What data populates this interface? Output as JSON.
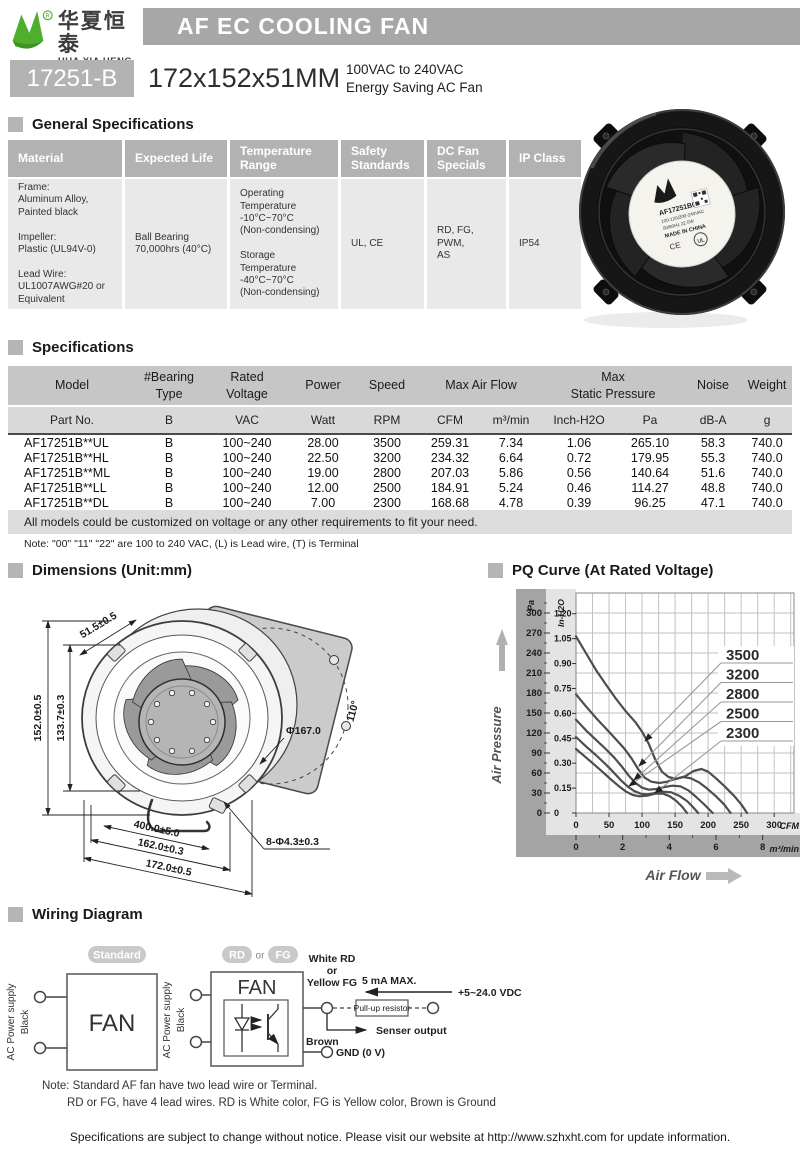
{
  "header": {
    "logo_cn": "华夏恒泰",
    "logo_en": "HUA XIA HENG TAI",
    "registered_mark": "®",
    "banner": "AF EC COOLING FAN",
    "model": "17251-B",
    "size": "172x152x51MM",
    "subtitle1": "100VAC to 240VAC",
    "subtitle2": "Energy Saving AC Fan"
  },
  "sections": {
    "general": "General Specifications",
    "specs": "Specifications",
    "dimensions": "Dimensions (Unit:mm)",
    "pq": "PQ Curve (At Rated Voltage)",
    "wiring": "Wiring Diagram"
  },
  "general_table": {
    "headers": [
      "Material",
      "Expected Life",
      "Temperature Range",
      "Safety Standards",
      "DC Fan Specials",
      "IP Class"
    ],
    "material": "Frame:\nAluminum Alloy,\nPainted black\n\nImpeller:\nPlastic (UL94V-0)\n\nLead Wire:\nUL1007AWG#20 or\nEquivalent",
    "expected_life": "Ball Bearing\n70,000hrs (40°C)",
    "temperature": "Operating\nTemperature\n-10°C~70°C\n(Non-condensing)\n\nStorage\nTemperature\n-40°C~70°C\n(Non-condensing)",
    "safety": "UL, CE",
    "dc_specials": "RD, FG,\nPWM,\nAS",
    "ip": "IP54"
  },
  "spec_table": {
    "h_model": "Model",
    "h_bearing": "#Bearing\nType",
    "h_voltage": "Rated\nVoltage",
    "h_power": "Power",
    "h_speed": "Speed",
    "h_airflow": "Max  Air  Flow",
    "h_pressure": "Max\nStatic  Pressure",
    "h_noise": "Noise",
    "h_weight": "Weight",
    "units": [
      "Part No.",
      "B",
      "VAC",
      "Watt",
      "RPM",
      "CFM",
      "m³/min",
      "Inch-H2O",
      "Pa",
      "dB-A",
      "g"
    ],
    "rows": [
      [
        "AF17251B**UL",
        "B",
        "100~240",
        "28.00",
        "3500",
        "259.31",
        "7.34",
        "1.06",
        "265.10",
        "58.3",
        "740.0"
      ],
      [
        "AF17251B**HL",
        "B",
        "100~240",
        "22.50",
        "3200",
        "234.32",
        "6.64",
        "0.72",
        "179.95",
        "55.3",
        "740.0"
      ],
      [
        "AF17251B**ML",
        "B",
        "100~240",
        "19.00",
        "2800",
        "207.03",
        "5.86",
        "0.56",
        "140.64",
        "51.6",
        "740.0"
      ],
      [
        "AF17251B**LL",
        "B",
        "100~240",
        "12.00",
        "2500",
        "184.91",
        "5.24",
        "0.46",
        "114.27",
        "48.8",
        "740.0"
      ],
      [
        "AF17251B**DL",
        "B",
        "100~240",
        "7.00",
        "2300",
        "168.68",
        "4.78",
        "0.39",
        "96.25",
        "47.1",
        "740.0"
      ]
    ],
    "note1": "All models could be customized on voltage or any other requirements to fit your need.",
    "note2": "Note: \"00\" \"11\"  \"22\" are 100 to 240 VAC, (L) is Lead wire, (T) is Terminal"
  },
  "fan_photo": {
    "label_model": "AF17251B00HL",
    "label_voltage": "100-120/200-240VAC",
    "label_power": "50/60Hz  22.5W",
    "label_origin": "MADE IN CHINA",
    "ce_mark": "CE",
    "ul_mark": "UL"
  },
  "dimensions": {
    "depth": "51.5±0.5",
    "height": "152.0±0.5",
    "inner_height": "133.7±0.3",
    "lead": "400.0±5.0",
    "inner_width": "162.0±0.3",
    "width": "172.0±0.5",
    "holes": "8-Φ4.3±0.3",
    "circle": "Φ167.0",
    "angle": "110°"
  },
  "chart_data": {
    "type": "line",
    "title": "PQ Curve (At Rated Voltage)",
    "xlabel": "Air Flow",
    "ylabel": "Air Pressure",
    "x_axis": {
      "cfm_ticks": [
        0,
        50,
        100,
        150,
        200,
        250,
        300
      ],
      "cfm_unit": "CFM",
      "m3_ticks": [
        0,
        2,
        4,
        6,
        8
      ],
      "m3_unit": "m³/min",
      "xlim_cfm": [
        0,
        330
      ]
    },
    "y_axis": {
      "pa_ticks": [
        0,
        30,
        60,
        90,
        120,
        150,
        180,
        210,
        240,
        270,
        300
      ],
      "pa_unit": "Pa",
      "inh2o_ticks": [
        "0",
        "0.15",
        "0.30",
        "0.45",
        "0.60",
        "0.75",
        "0.90",
        "1.05",
        "1.20"
      ],
      "inh2o_unit": "In-H2O",
      "ylim_pa": [
        0,
        330
      ]
    },
    "grid": true,
    "legend_position": "top-right",
    "series": [
      {
        "name": "3500",
        "points": [
          [
            0,
            265
          ],
          [
            15,
            240
          ],
          [
            30,
            215
          ],
          [
            45,
            193
          ],
          [
            60,
            172
          ],
          [
            75,
            153
          ],
          [
            90,
            136
          ],
          [
            100,
            122
          ],
          [
            110,
            104
          ],
          [
            120,
            80
          ],
          [
            130,
            62
          ],
          [
            140,
            54
          ],
          [
            152,
            51
          ],
          [
            165,
            55
          ],
          [
            178,
            63
          ],
          [
            190,
            66
          ],
          [
            200,
            62
          ],
          [
            212,
            52
          ],
          [
            225,
            40
          ],
          [
            240,
            25
          ],
          [
            250,
            13
          ],
          [
            259,
            0
          ]
        ]
      },
      {
        "name": "3200",
        "points": [
          [
            0,
            178
          ],
          [
            15,
            160
          ],
          [
            30,
            143
          ],
          [
            45,
            127
          ],
          [
            60,
            111
          ],
          [
            72,
            98
          ],
          [
            84,
            82
          ],
          [
            94,
            66
          ],
          [
            104,
            53
          ],
          [
            114,
            47
          ],
          [
            126,
            45
          ],
          [
            138,
            47
          ],
          [
            150,
            51
          ],
          [
            162,
            54
          ],
          [
            174,
            52
          ],
          [
            186,
            46
          ],
          [
            198,
            37
          ],
          [
            212,
            25
          ],
          [
            224,
            13
          ],
          [
            234,
            0
          ]
        ]
      },
      {
        "name": "2800",
        "points": [
          [
            0,
            140
          ],
          [
            15,
            124
          ],
          [
            30,
            110
          ],
          [
            45,
            96
          ],
          [
            58,
            83
          ],
          [
            70,
            69
          ],
          [
            80,
            56
          ],
          [
            90,
            45
          ],
          [
            100,
            38
          ],
          [
            110,
            35
          ],
          [
            122,
            36
          ],
          [
            134,
            39
          ],
          [
            146,
            41
          ],
          [
            158,
            40
          ],
          [
            170,
            34
          ],
          [
            182,
            24
          ],
          [
            195,
            12
          ],
          [
            207,
            0
          ]
        ]
      },
      {
        "name": "2500",
        "points": [
          [
            0,
            114
          ],
          [
            15,
            100
          ],
          [
            30,
            87
          ],
          [
            45,
            73
          ],
          [
            56,
            62
          ],
          [
            68,
            49
          ],
          [
            78,
            40
          ],
          [
            88,
            33
          ],
          [
            98,
            29
          ],
          [
            108,
            28
          ],
          [
            120,
            30
          ],
          [
            132,
            32
          ],
          [
            144,
            31
          ],
          [
            156,
            26
          ],
          [
            168,
            18
          ],
          [
            177,
            9
          ],
          [
            185,
            0
          ]
        ]
      },
      {
        "name": "2300",
        "points": [
          [
            0,
            96
          ],
          [
            12,
            86
          ],
          [
            26,
            74
          ],
          [
            40,
            62
          ],
          [
            52,
            51
          ],
          [
            64,
            41
          ],
          [
            76,
            32
          ],
          [
            86,
            27
          ],
          [
            96,
            25
          ],
          [
            108,
            26
          ],
          [
            120,
            29
          ],
          [
            132,
            29
          ],
          [
            142,
            25
          ],
          [
            152,
            18
          ],
          [
            161,
            9
          ],
          [
            168,
            0
          ]
        ]
      }
    ]
  },
  "wiring": {
    "standard_badge": "Standard",
    "rd_badge": "RD",
    "or_label": "or",
    "fg_badge": "FG",
    "fan_label": "FAN",
    "ac_label": "AC Power supply",
    "black_label": "Black",
    "out1_line1": "White  RD",
    "out1_line2": "or",
    "out1_line3": "Yellow FG",
    "current": "5 mA MAX.",
    "vdc": "+5~24.0 VDC",
    "pullup": "Pull-up resistor",
    "sensor": "Senser output",
    "brown": "Brown",
    "gnd": "GND (0 V)",
    "note1": "Note: Standard AF fan have two lead wire or Terminal.",
    "note2": "RD or FG, have 4 lead wires. RD is White color, FG is Yellow color, Brown is Ground"
  },
  "footer": "Specifications are subject to change without notice. Please visit our website at http://www.szhxht.com for update information.",
  "colors": {
    "logo_green": "#4fae2d",
    "banner_gray": "#a7a7a7",
    "table_header_gray": "#b2b2b2",
    "table_body_gray": "#e9e9e9"
  }
}
